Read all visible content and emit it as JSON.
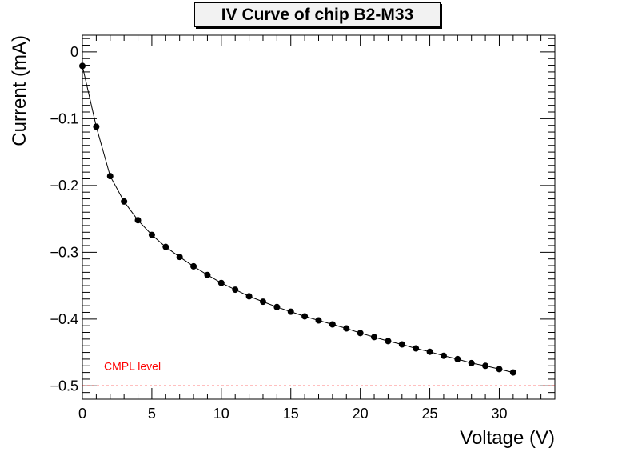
{
  "chart_data": {
    "type": "scatter",
    "title": "IV Curve of chip B2-M33",
    "xlabel": "Voltage (V)",
    "ylabel": "Current (mA)",
    "xlim": [
      0,
      34
    ],
    "ylim": [
      -0.52,
      0.025
    ],
    "x_ticks": [
      0,
      5,
      10,
      15,
      20,
      25,
      30
    ],
    "y_ticks": [
      0,
      -0.1,
      -0.2,
      -0.3,
      -0.4,
      -0.5
    ],
    "x_tick_labels": [
      "0",
      "5",
      "10",
      "15",
      "20",
      "25",
      "30"
    ],
    "y_tick_labels": [
      "0",
      "−0.1",
      "−0.2",
      "−0.3",
      "−0.4",
      "−0.5"
    ],
    "grid": false,
    "series": [
      {
        "x": [
          0,
          1,
          2,
          3,
          4,
          5,
          6,
          7,
          8,
          9,
          10,
          11,
          12,
          13,
          14,
          15,
          16,
          17,
          18,
          19,
          20,
          21,
          22,
          23,
          24,
          25,
          26,
          27,
          28,
          29,
          30,
          31
        ],
        "y": [
          -0.021,
          -0.112,
          -0.186,
          -0.224,
          -0.252,
          -0.274,
          -0.292,
          -0.307,
          -0.321,
          -0.334,
          -0.346,
          -0.356,
          -0.366,
          -0.374,
          -0.382,
          -0.389,
          -0.396,
          -0.402,
          -0.408,
          -0.414,
          -0.421,
          -0.427,
          -0.433,
          -0.438,
          -0.444,
          -0.449,
          -0.455,
          -0.46,
          -0.466,
          -0.47,
          -0.475,
          -0.48
        ],
        "color": "#000000"
      }
    ],
    "reference_line": {
      "y": -0.5,
      "label": "CMPL level",
      "color": "#ff0000",
      "style": "dashed"
    }
  }
}
